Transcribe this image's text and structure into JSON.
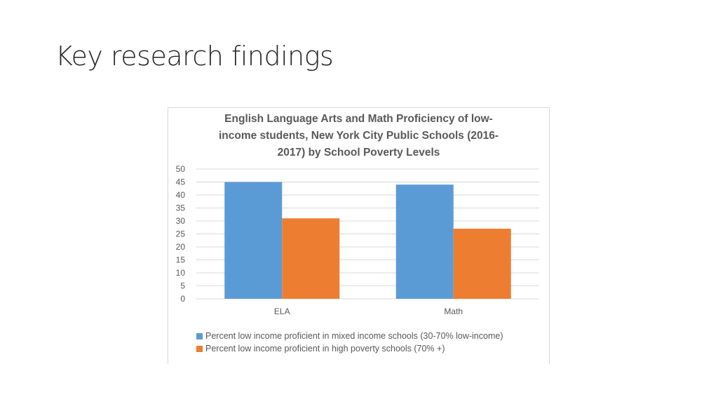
{
  "slide": {
    "title": "Key research findings"
  },
  "chart_data": {
    "type": "bar",
    "title_lines": [
      "English Language Arts and Math Proficiency of low-",
      "income students, New York City Public Schools (2016-",
      "2017) by School Poverty Levels"
    ],
    "categories": [
      "ELA",
      "Math"
    ],
    "series": [
      {
        "name": "Percent low income proficient in mixed income schools (30-70% low-income)",
        "values": [
          45,
          44
        ],
        "color": "#5b9bd5"
      },
      {
        "name": "Percent low income proficient in high poverty schools (70% +)",
        "values": [
          31,
          27
        ],
        "color": "#ed7d31"
      }
    ],
    "ylim": [
      0,
      50
    ],
    "yticks": [
      "0",
      "5",
      "10",
      "15",
      "20",
      "25",
      "30",
      "35",
      "40",
      "45",
      "50"
    ],
    "grid": true,
    "legend": "bottom-left"
  }
}
